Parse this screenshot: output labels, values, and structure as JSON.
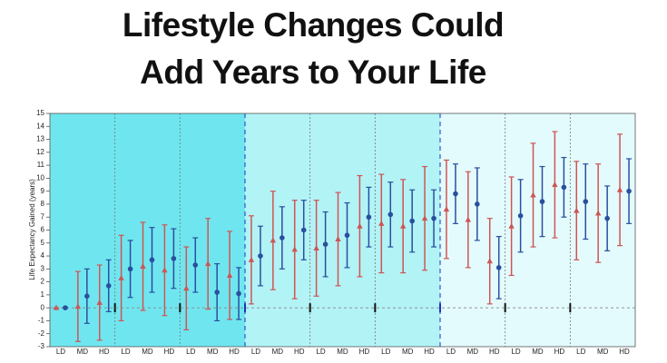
{
  "chart_data": {
    "type": "errorbar",
    "title": "Lifestyle Changes Could Add Years to Your Life",
    "y_label": "Life Expectancy Gained (years)",
    "categories": [
      "LD",
      "MD",
      "HD",
      "LD",
      "MD",
      "HD",
      "LD",
      "MD",
      "HD",
      "LD",
      "MD",
      "HD",
      "LD",
      "MD",
      "HD",
      "LD",
      "MD",
      "HD",
      "LD",
      "MD",
      "HD",
      "LD",
      "MD",
      "HD",
      "LD",
      "MD",
      "HD"
    ],
    "series": [
      {
        "color": "#cf5555",
        "values": [
          0,
          0.1,
          0.4,
          2.3,
          3.2,
          2.9,
          1.5,
          3.4,
          2.5,
          3.7,
          5.2,
          4.5,
          4.6,
          5.3,
          6.3,
          6.5,
          6.3,
          6.9,
          7.6,
          6.8,
          3.6,
          6.3,
          8.7,
          9.5,
          7.5,
          7.3,
          9.1
        ],
        "errors": [
          0,
          2.7,
          2.9,
          3.3,
          3.4,
          3.5,
          3.2,
          3.5,
          3.4,
          3.4,
          3.8,
          3.8,
          3.7,
          3.6,
          3.9,
          3.8,
          3.6,
          4.0,
          3.8,
          3.7,
          3.3,
          3.8,
          4.0,
          4.1,
          3.8,
          3.8,
          4.3
        ]
      },
      {
        "color": "#2a4f9e",
        "values": [
          0,
          0.9,
          1.7,
          3.0,
          3.7,
          3.8,
          3.3,
          1.2,
          1.1,
          4.0,
          5.4,
          6.0,
          4.9,
          5.6,
          7.0,
          7.2,
          6.7,
          6.9,
          8.8,
          8.0,
          3.1,
          7.1,
          8.2,
          9.3,
          8.2,
          6.9,
          9.0
        ],
        "errors": [
          0,
          2.1,
          2.0,
          2.2,
          2.5,
          2.3,
          2.1,
          2.2,
          2.0,
          2.3,
          2.4,
          2.3,
          2.5,
          2.5,
          2.3,
          2.5,
          2.4,
          2.2,
          2.3,
          2.8,
          2.4,
          2.8,
          2.7,
          2.3,
          2.9,
          2.5,
          2.5
        ]
      }
    ],
    "ylim": [
      -3,
      15
    ],
    "yticks": [
      -3,
      -2,
      -1,
      0,
      1,
      2,
      3,
      4,
      5,
      6,
      7,
      8,
      9,
      10,
      11,
      12,
      13,
      14,
      15
    ],
    "zero_line": true
  }
}
